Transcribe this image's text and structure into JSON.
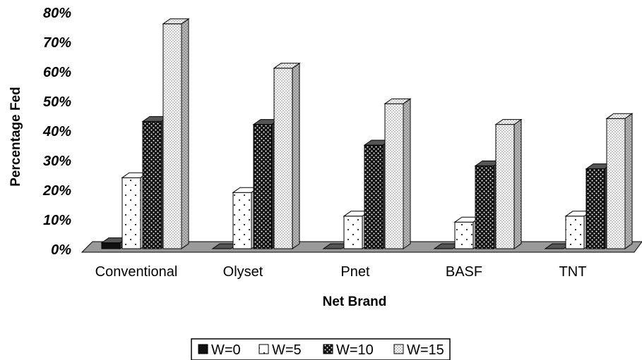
{
  "chart_data": {
    "type": "bar",
    "title": "",
    "xlabel": "Net Brand",
    "ylabel": "Percentage Fed",
    "categories": [
      "Conventional",
      "Olyset",
      "Pnet",
      "BASF",
      "TNT"
    ],
    "ylim": [
      0,
      80
    ],
    "yticks": [
      "0%",
      "10%",
      "20%",
      "30%",
      "40%",
      "50%",
      "60%",
      "70%",
      "80%"
    ],
    "series": [
      {
        "name": "W=0",
        "values": [
          2,
          0,
          0,
          0,
          0
        ]
      },
      {
        "name": "W=5",
        "values": [
          24,
          19,
          11,
          9,
          11
        ]
      },
      {
        "name": "W=10",
        "values": [
          43,
          42,
          35,
          28,
          27
        ]
      },
      {
        "name": "W=15",
        "values": [
          76,
          61,
          49,
          42,
          44
        ]
      }
    ],
    "legend_position": "bottom",
    "three_d": true,
    "grid": false,
    "colors": {
      "W=0": "#111111",
      "W=5": "#ffffff",
      "W=10": "#1a1a1a",
      "W=15": "#f2f2f2",
      "floor": "#9a9a9a"
    }
  }
}
